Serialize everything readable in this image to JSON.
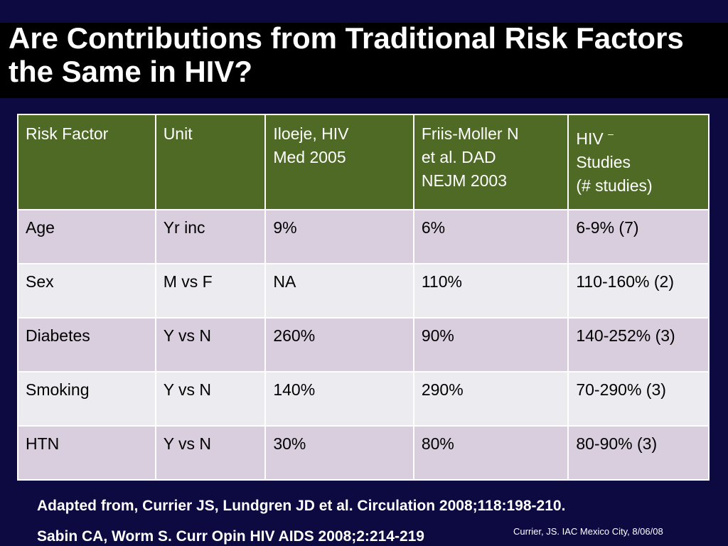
{
  "slide": {
    "title": "Are Contributions from Traditional Risk Factors the Same in HIV?",
    "colors": {
      "background": "#0c0a40",
      "title_band": "#000000",
      "header_fill": "#4e6a24",
      "row_dark": "#d9cedd",
      "row_light": "#ecebf0"
    }
  },
  "table": {
    "headers": [
      [
        "Risk Factor"
      ],
      [
        "Unit"
      ],
      [
        "Iloeje, HIV",
        "Med 2005"
      ],
      [
        "Friis-Moller N",
        "et al. DAD",
        "NEJM 2003"
      ],
      [
        "HIV",
        "Studies",
        "(# studies)"
      ]
    ],
    "header_superscript": "–",
    "rows": [
      [
        "Age",
        "Yr inc",
        "9%",
        "6%",
        "6-9% (7)"
      ],
      [
        "Sex",
        "M vs F",
        "NA",
        "110%",
        "110-160% (2)"
      ],
      [
        "Diabetes",
        "Y vs N",
        "260%",
        "90%",
        "140-252% (3)"
      ],
      [
        "Smoking",
        "Y vs N",
        "140%",
        "290%",
        "70-290% (3)"
      ],
      [
        "HTN",
        "Y vs N",
        "30%",
        "80%",
        "80-90% (3)"
      ]
    ]
  },
  "references": {
    "line1": "Adapted from, Currier JS, Lundgren JD et al. Circulation 2008;118:198-210.",
    "line2": "Sabin CA, Worm S.  Curr Opin HIV AIDS 2008;2:214-219",
    "credit": "Currier, JS. IAC Mexico City, 8/06/08"
  }
}
